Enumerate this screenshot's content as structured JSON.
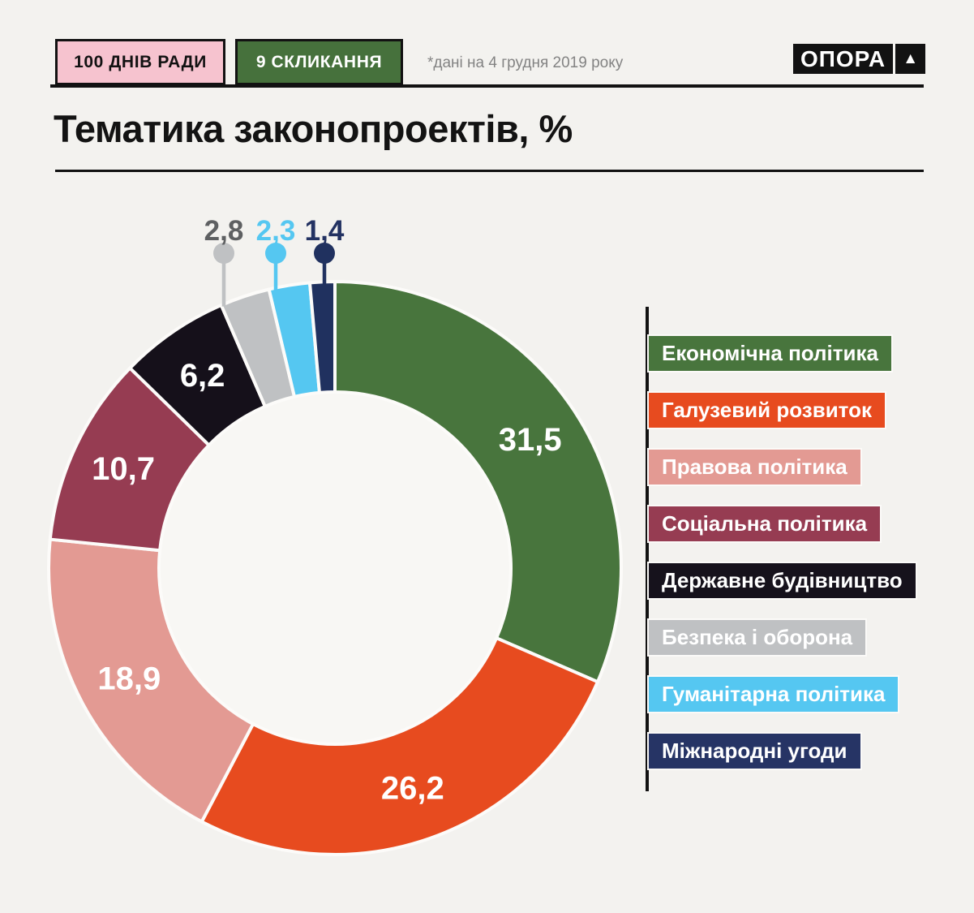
{
  "header": {
    "badge_primary": "100 ДНІВ РАДИ",
    "badge_secondary": "9 СКЛИКАННЯ",
    "note": "*дані на 4 грудня 2019 року",
    "logo_text": "ОПОРА",
    "logo_mark": "▲"
  },
  "title": "Тематика законопроектів, %",
  "chart_data": {
    "type": "donut",
    "title": "Тематика законопроектів, %",
    "unit": "%",
    "direction": "clockwise",
    "start_angle_deg": 0,
    "legend_position": "right",
    "categories": [
      "Економічна політика",
      "Галузевий розвиток",
      "Правова політика",
      "Соціальна політика",
      "Державне будівництво",
      "Безпека і оборона",
      "Гуманітарна політика",
      "Міжнародні угоди"
    ],
    "values": [
      31.5,
      26.2,
      18.9,
      10.7,
      6.2,
      2.8,
      2.3,
      1.4
    ],
    "display_values": [
      "31,5",
      "26,2",
      "18,9",
      "10,7",
      "6,2",
      "2,8",
      "2,3",
      "1,4"
    ],
    "colors": [
      "#48753d",
      "#e74b1f",
      "#e39a93",
      "#963c52",
      "#15101a",
      "#bfc1c3",
      "#55c7f1",
      "#20315f"
    ],
    "value_label_colors": [
      "#ffffff",
      "#ffffff",
      "#ffffff",
      "#ffffff",
      "#ffffff",
      "#5e6062",
      "#55c7f1",
      "#233262"
    ],
    "hole_color": "#f8f7f4",
    "separator_color": "#fcfbf9"
  },
  "legend": {
    "items": [
      {
        "label": "Економічна політика",
        "color": "#48753d",
        "text_color": "#ffffff"
      },
      {
        "label": "Галузевий розвиток",
        "color": "#e74b1f",
        "text_color": "#ffffff"
      },
      {
        "label": "Правова політика",
        "color": "#e39a93",
        "text_color": "#ffffff"
      },
      {
        "label": "Соціальна політика",
        "color": "#963c52",
        "text_color": "#ffffff"
      },
      {
        "label": "Державне будівництво",
        "color": "#16121c",
        "text_color": "#ffffff"
      },
      {
        "label": "Безпека і оборона",
        "color": "#bfc1c3",
        "text_color": "#ffffff"
      },
      {
        "label": "Гуманітарна політика",
        "color": "#55c7f1",
        "text_color": "#ffffff"
      },
      {
        "label": "Міжнародні угоди",
        "color": "#263465",
        "text_color": "#ffffff"
      }
    ]
  }
}
